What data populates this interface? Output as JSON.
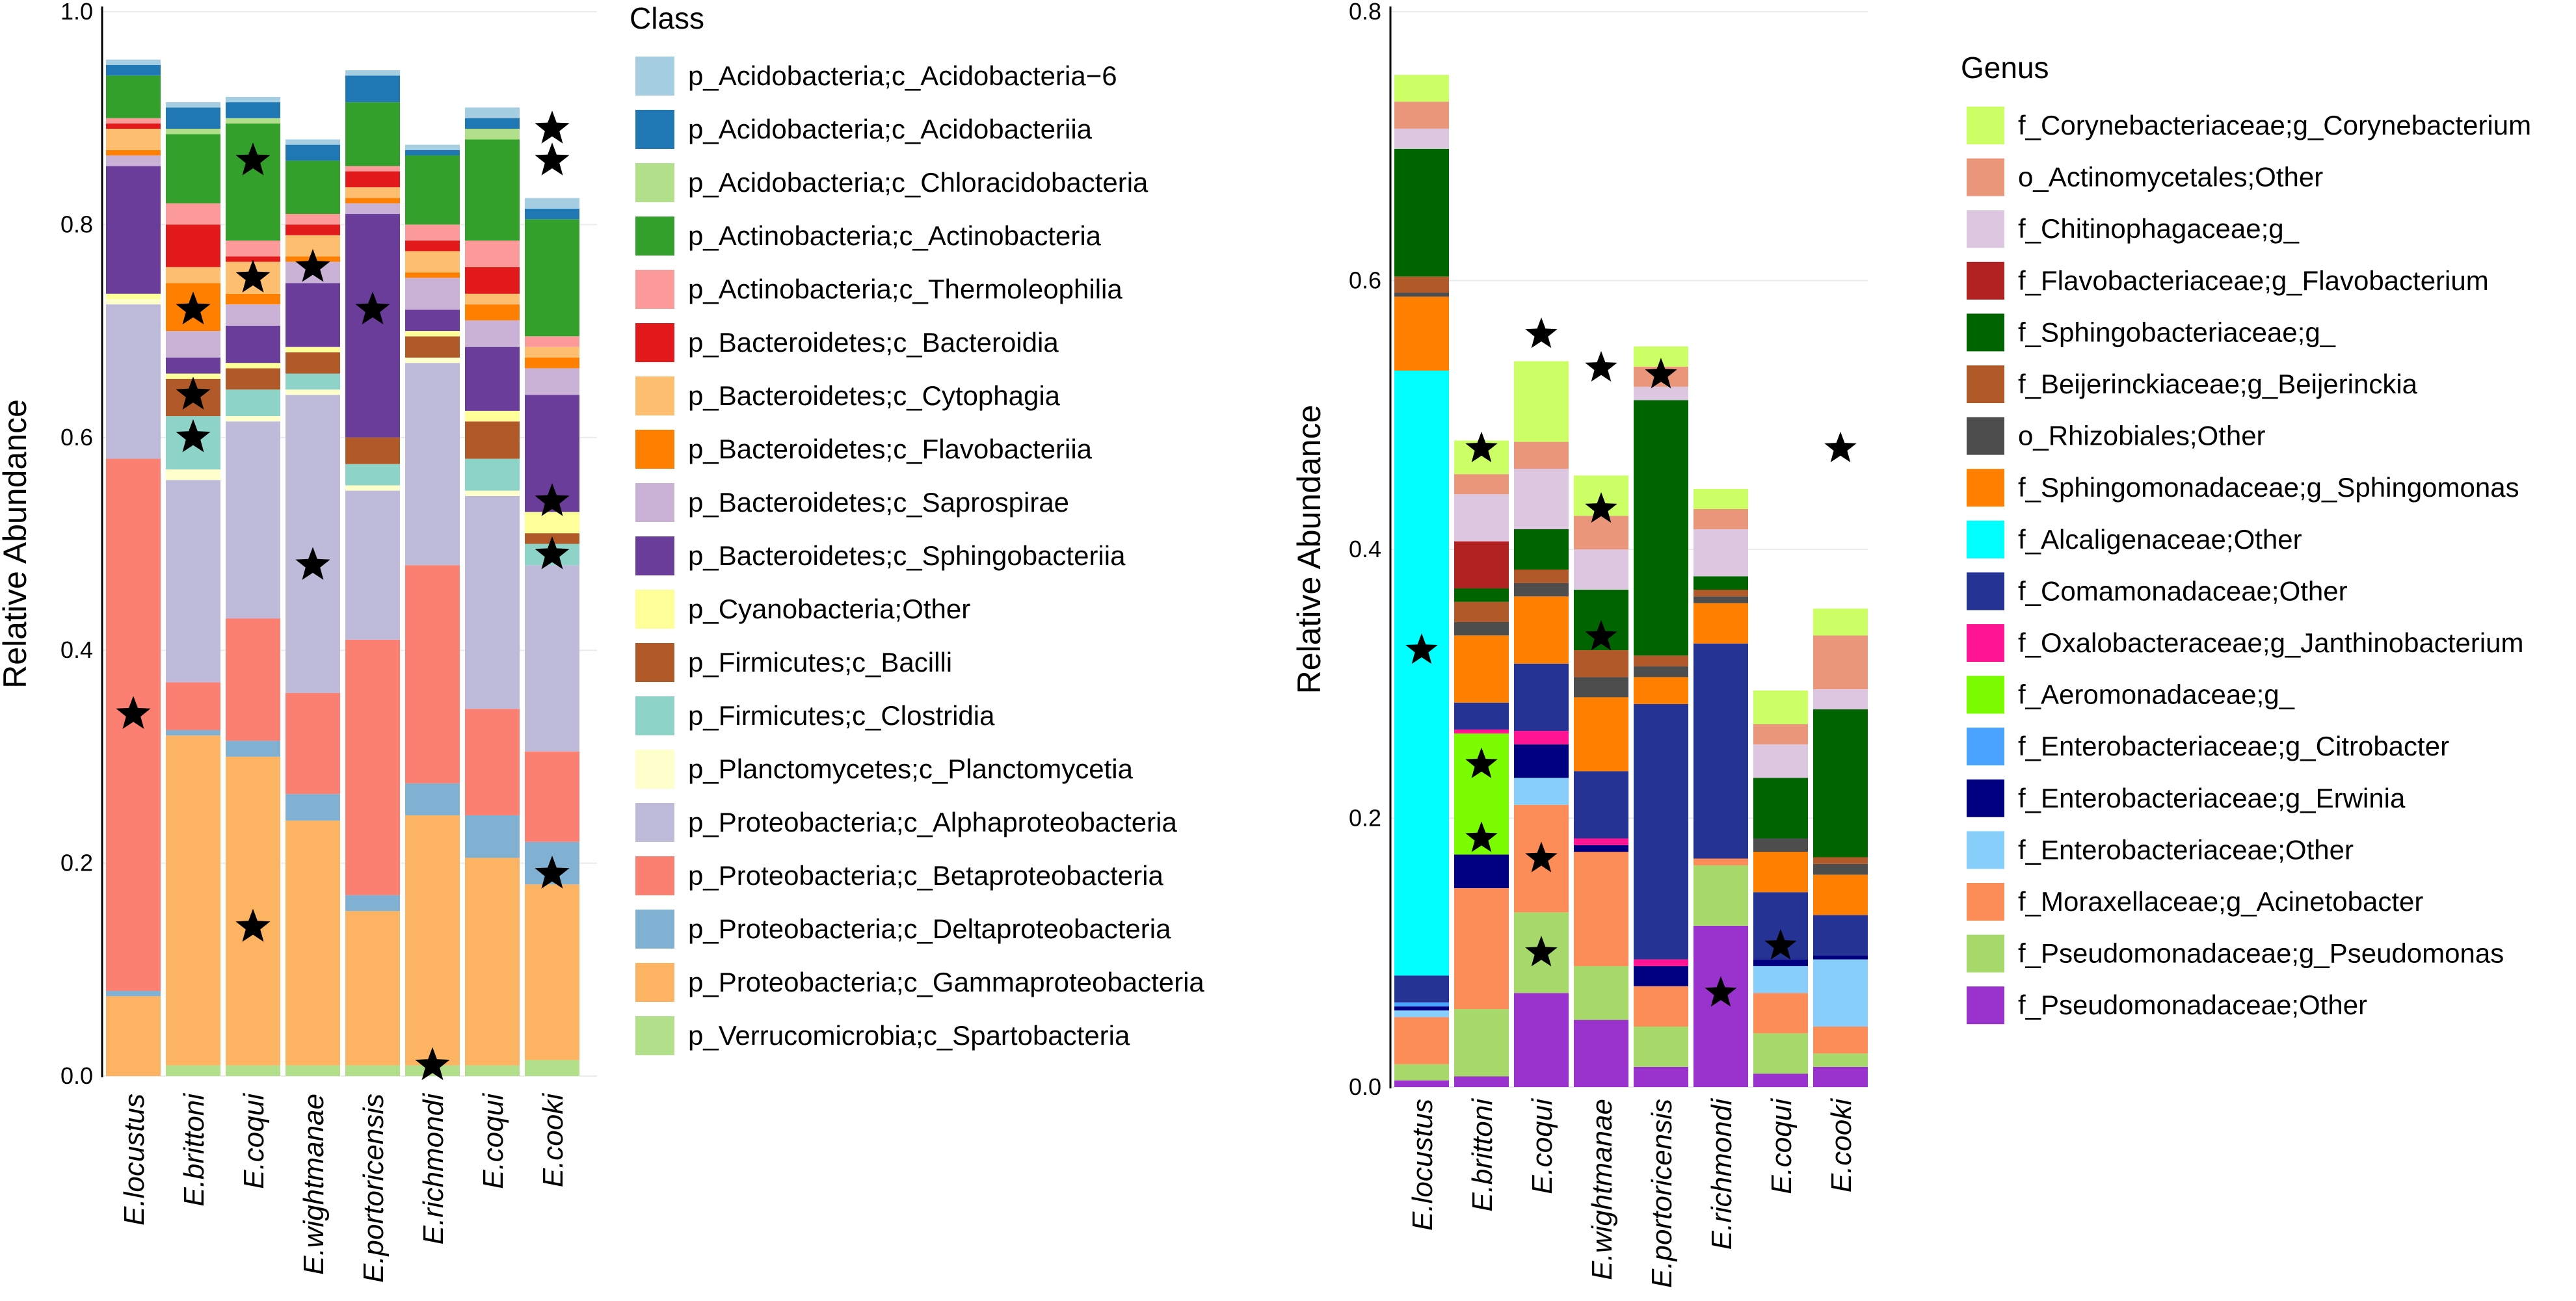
{
  "chart_data": [
    {
      "type": "stacked-bar",
      "ylabel": "Relative Abundance",
      "ylim": [
        0,
        1.0
      ],
      "yticks": [
        "0.0",
        "0.2",
        "0.4",
        "0.6",
        "0.8",
        "1.0"
      ],
      "categories": [
        "E.locustus",
        "E.brittoni",
        "E.coqui",
        "E.wightmanae",
        "E.portoricensis",
        "E.richmondi",
        "E.coqui",
        "E.cooki"
      ],
      "legend_title": "Class",
      "series": [
        {
          "name": "p_Verrucomicrobia;c_Spartobacteria",
          "color": "#b2df8a",
          "values": [
            0.0,
            0.01,
            0.01,
            0.01,
            0.01,
            0.01,
            0.01,
            0.015
          ]
        },
        {
          "name": "p_Proteobacteria;c_Gammaproteobacteria",
          "color": "#fdb462",
          "values": [
            0.075,
            0.31,
            0.29,
            0.23,
            0.145,
            0.235,
            0.195,
            0.165
          ]
        },
        {
          "name": "p_Proteobacteria;c_Deltaproteobacteria",
          "color": "#80b1d3",
          "values": [
            0.005,
            0.005,
            0.015,
            0.025,
            0.015,
            0.03,
            0.04,
            0.04
          ]
        },
        {
          "name": "p_Proteobacteria;c_Betaproteobacteria",
          "color": "#fb8072",
          "values": [
            0.5,
            0.045,
            0.115,
            0.095,
            0.24,
            0.205,
            0.1,
            0.085
          ]
        },
        {
          "name": "p_Proteobacteria;c_Alphaproteobacteria",
          "color": "#bebada",
          "values": [
            0.145,
            0.19,
            0.185,
            0.28,
            0.14,
            0.19,
            0.2,
            0.175
          ]
        },
        {
          "name": "p_Planctomycetes;c_Planctomycetia",
          "color": "#ffffcc",
          "values": [
            0.005,
            0.01,
            0.005,
            0.005,
            0.005,
            0.005,
            0.005,
            0.0
          ]
        },
        {
          "name": "p_Firmicutes;c_Clostridia",
          "color": "#8dd3c7",
          "values": [
            0.0,
            0.05,
            0.025,
            0.015,
            0.02,
            0.0,
            0.03,
            0.02
          ]
        },
        {
          "name": "p_Firmicutes;c_Bacilli",
          "color": "#b15928",
          "values": [
            0.0,
            0.035,
            0.02,
            0.02,
            0.025,
            0.02,
            0.035,
            0.01
          ]
        },
        {
          "name": "p_Cyanobacteria;Other",
          "color": "#ffff99",
          "values": [
            0.005,
            0.005,
            0.005,
            0.005,
            0.0,
            0.005,
            0.01,
            0.02
          ]
        },
        {
          "name": "p_Bacteroidetes;c_Sphingobacteriia",
          "color": "#6a3d9a",
          "values": [
            0.12,
            0.015,
            0.035,
            0.06,
            0.21,
            0.02,
            0.06,
            0.11
          ]
        },
        {
          "name": "p_Bacteroidetes;c_Saprospirae",
          "color": "#cab2d6",
          "values": [
            0.01,
            0.025,
            0.02,
            0.02,
            0.01,
            0.03,
            0.025,
            0.025
          ]
        },
        {
          "name": "p_Bacteroidetes;c_Flavobacteriia",
          "color": "#ff7f00",
          "values": [
            0.005,
            0.045,
            0.01,
            0.005,
            0.005,
            0.005,
            0.015,
            0.01
          ]
        },
        {
          "name": "p_Bacteroidetes;c_Cytophagia",
          "color": "#fdbf6f",
          "values": [
            0.02,
            0.015,
            0.03,
            0.02,
            0.01,
            0.02,
            0.01,
            0.01
          ]
        },
        {
          "name": "p_Bacteroidetes;c_Bacteroidia",
          "color": "#e31a1c",
          "values": [
            0.005,
            0.04,
            0.005,
            0.01,
            0.015,
            0.01,
            0.025,
            0.0
          ]
        },
        {
          "name": "p_Actinobacteria;c_Thermoleophilia",
          "color": "#fb9a99",
          "values": [
            0.005,
            0.02,
            0.015,
            0.01,
            0.005,
            0.015,
            0.025,
            0.01
          ]
        },
        {
          "name": "p_Actinobacteria;c_Actinobacteria",
          "color": "#33a02c",
          "values": [
            0.04,
            0.065,
            0.11,
            0.05,
            0.06,
            0.065,
            0.095,
            0.11
          ]
        },
        {
          "name": "p_Acidobacteria;c_Chloracidobacteria",
          "color": "#b2df8a",
          "values": [
            0.0,
            0.005,
            0.005,
            0.0,
            0.0,
            0.0,
            0.01,
            0.0
          ]
        },
        {
          "name": "p_Acidobacteria;c_Acidobacteriia",
          "color": "#1f78b4",
          "values": [
            0.01,
            0.02,
            0.015,
            0.015,
            0.025,
            0.005,
            0.01,
            0.01
          ]
        },
        {
          "name": "p_Acidobacteria;c_Acidobacteria−6",
          "color": "#a6cee3",
          "values": [
            0.005,
            0.005,
            0.005,
            0.005,
            0.005,
            0.005,
            0.01,
            0.01
          ]
        }
      ],
      "legend_order": [
        "p_Acidobacteria;c_Acidobacteria−6",
        "p_Acidobacteria;c_Acidobacteriia",
        "p_Acidobacteria;c_Chloracidobacteria",
        "p_Actinobacteria;c_Actinobacteria",
        "p_Actinobacteria;c_Thermoleophilia",
        "p_Bacteroidetes;c_Bacteroidia",
        "p_Bacteroidetes;c_Cytophagia",
        "p_Bacteroidetes;c_Flavobacteriia",
        "p_Bacteroidetes;c_Saprospirae",
        "p_Bacteroidetes;c_Sphingobacteriia",
        "p_Cyanobacteria;Other",
        "p_Firmicutes;c_Bacilli",
        "p_Firmicutes;c_Clostridia",
        "p_Planctomycetes;c_Planctomycetia",
        "p_Proteobacteria;c_Alphaproteobacteria",
        "p_Proteobacteria;c_Betaproteobacteria",
        "p_Proteobacteria;c_Deltaproteobacteria",
        "p_Proteobacteria;c_Gammaproteobacteria",
        "p_Verrucomicrobia;c_Spartobacteria"
      ],
      "star_markers": [
        {
          "category": 0,
          "value": 0.34
        },
        {
          "category": 1,
          "value": 0.72
        },
        {
          "category": 1,
          "value": 0.64
        },
        {
          "category": 1,
          "value": 0.6
        },
        {
          "category": 2,
          "value": 0.86
        },
        {
          "category": 2,
          "value": 0.75
        },
        {
          "category": 2,
          "value": 0.14
        },
        {
          "category": 3,
          "value": 0.76
        },
        {
          "category": 3,
          "value": 0.48
        },
        {
          "category": 4,
          "value": 0.72
        },
        {
          "category": 5,
          "value": 0.01
        },
        {
          "category": 7,
          "value": 0.89
        },
        {
          "category": 7,
          "value": 0.86
        },
        {
          "category": 7,
          "value": 0.54
        },
        {
          "category": 7,
          "value": 0.49
        },
        {
          "category": 7,
          "value": 0.19
        }
      ]
    },
    {
      "type": "stacked-bar",
      "ylabel": "Relative Abundance",
      "ylim": [
        0,
        0.8
      ],
      "yticks": [
        "0.0",
        "0.2",
        "0.4",
        "0.6",
        "0.8"
      ],
      "categories": [
        "E.locustus",
        "E.brittoni",
        "E.coqui",
        "E.wightmanae",
        "E.portoricensis",
        "E.richmondi",
        "E.coqui",
        "E.cooki"
      ],
      "legend_title": "Genus",
      "series": [
        {
          "name": "f_Pseudomonadaceae;Other",
          "color": "#9a32cd",
          "values": [
            0.005,
            0.008,
            0.07,
            0.05,
            0.015,
            0.12,
            0.01,
            0.015
          ]
        },
        {
          "name": "f_Pseudomonadaceae;g_Pseudomonas",
          "color": "#a6d96a",
          "values": [
            0.012,
            0.05,
            0.06,
            0.04,
            0.03,
            0.045,
            0.03,
            0.01
          ]
        },
        {
          "name": "f_Moraxellaceae;g_Acinetobacter",
          "color": "#fc8d59",
          "values": [
            0.035,
            0.09,
            0.08,
            0.085,
            0.03,
            0.005,
            0.03,
            0.02
          ]
        },
        {
          "name": "f_Enterobacteriaceae;Other",
          "color": "#87cefa",
          "values": [
            0.005,
            0.0,
            0.02,
            0.0,
            0.0,
            0.0,
            0.02,
            0.05
          ]
        },
        {
          "name": "f_Enterobacteriaceae;g_Erwinia",
          "color": "#000080",
          "values": [
            0.003,
            0.025,
            0.025,
            0.005,
            0.015,
            0.0,
            0.005,
            0.003
          ]
        },
        {
          "name": "f_Enterobacteriaceae;g_Citrobacter",
          "color": "#4aa3ff",
          "values": [
            0.003,
            0.0,
            0.0,
            0.0,
            0.0,
            0.0,
            0.0,
            0.0
          ]
        },
        {
          "name": "f_Aeromonadaceae;g_",
          "color": "#7cfc00",
          "values": [
            0.0,
            0.09,
            0.0,
            0.0,
            0.0,
            0.0,
            0.0,
            0.0
          ]
        },
        {
          "name": "f_Oxalobacteraceae;g_Janthinobacterium",
          "color": "#ff1493",
          "values": [
            0.0,
            0.003,
            0.01,
            0.005,
            0.005,
            0.0,
            0.0,
            0.0
          ]
        },
        {
          "name": "f_Comamonadaceae;Other",
          "color": "#253494",
          "values": [
            0.02,
            0.02,
            0.05,
            0.05,
            0.19,
            0.16,
            0.05,
            0.03
          ]
        },
        {
          "name": "f_Alcaligenaceae;Other",
          "color": "#00ffff",
          "values": [
            0.45,
            0.0,
            0.0,
            0.0,
            0.0,
            0.0,
            0.0,
            0.0
          ]
        },
        {
          "name": "f_Sphingomonadaceae;g_Sphingomonas",
          "color": "#ff7f00",
          "values": [
            0.055,
            0.05,
            0.05,
            0.055,
            0.02,
            0.03,
            0.03,
            0.03
          ]
        },
        {
          "name": "o_Rhizobiales;Other",
          "color": "#4d4d4d",
          "values": [
            0.003,
            0.01,
            0.01,
            0.015,
            0.008,
            0.005,
            0.01,
            0.008
          ]
        },
        {
          "name": "f_Beijerinckiaceae;g_Beijerinckia",
          "color": "#b15928",
          "values": [
            0.012,
            0.015,
            0.01,
            0.02,
            0.008,
            0.005,
            0.0,
            0.005
          ]
        },
        {
          "name": "f_Sphingobacteriaceae;g_",
          "color": "#006400",
          "values": [
            0.095,
            0.01,
            0.03,
            0.045,
            0.19,
            0.01,
            0.045,
            0.11
          ]
        },
        {
          "name": "f_Flavobacteriaceae;g_Flavobacterium",
          "color": "#b22222",
          "values": [
            0.0,
            0.035,
            0.0,
            0.0,
            0.0,
            0.0,
            0.0,
            0.0
          ]
        },
        {
          "name": "f_Chitinophagaceae;g_",
          "color": "#dcc6e0",
          "values": [
            0.015,
            0.035,
            0.045,
            0.03,
            0.01,
            0.035,
            0.025,
            0.015
          ]
        },
        {
          "name": "o_Actinomycetales;Other",
          "color": "#e9967a",
          "values": [
            0.02,
            0.015,
            0.02,
            0.025,
            0.015,
            0.015,
            0.015,
            0.04
          ]
        },
        {
          "name": "f_Corynebacteriaceae;g_Corynebacterium",
          "color": "#ccff66",
          "values": [
            0.02,
            0.025,
            0.06,
            0.03,
            0.015,
            0.015,
            0.025,
            0.02
          ]
        }
      ],
      "legend_order": [
        "f_Corynebacteriaceae;g_Corynebacterium",
        "o_Actinomycetales;Other",
        "f_Chitinophagaceae;g_",
        "f_Flavobacteriaceae;g_Flavobacterium",
        "f_Sphingobacteriaceae;g_",
        "f_Beijerinckiaceae;g_Beijerinckia",
        "o_Rhizobiales;Other",
        "f_Sphingomonadaceae;g_Sphingomonas",
        "f_Alcaligenaceae;Other",
        "f_Comamonadaceae;Other",
        "f_Oxalobacteraceae;g_Janthinobacterium",
        "f_Aeromonadaceae;g_",
        "f_Enterobacteriaceae;g_Citrobacter",
        "f_Enterobacteriaceae;g_Erwinia",
        "f_Enterobacteriaceae;Other",
        "f_Moraxellaceae;g_Acinetobacter",
        "f_Pseudomonadaceae;g_Pseudomonas",
        "f_Pseudomonadaceae;Other"
      ],
      "star_markers": [
        {
          "category": 0,
          "value": 0.325
        },
        {
          "category": 1,
          "value": 0.475
        },
        {
          "category": 1,
          "value": 0.24
        },
        {
          "category": 1,
          "value": 0.185
        },
        {
          "category": 2,
          "value": 0.56
        },
        {
          "category": 2,
          "value": 0.17
        },
        {
          "category": 2,
          "value": 0.1
        },
        {
          "category": 3,
          "value": 0.535
        },
        {
          "category": 3,
          "value": 0.43
        },
        {
          "category": 3,
          "value": 0.335
        },
        {
          "category": 4,
          "value": 0.53
        },
        {
          "category": 5,
          "value": 0.07
        },
        {
          "category": 6,
          "value": 0.105
        },
        {
          "category": 7,
          "value": 0.475
        }
      ]
    }
  ]
}
